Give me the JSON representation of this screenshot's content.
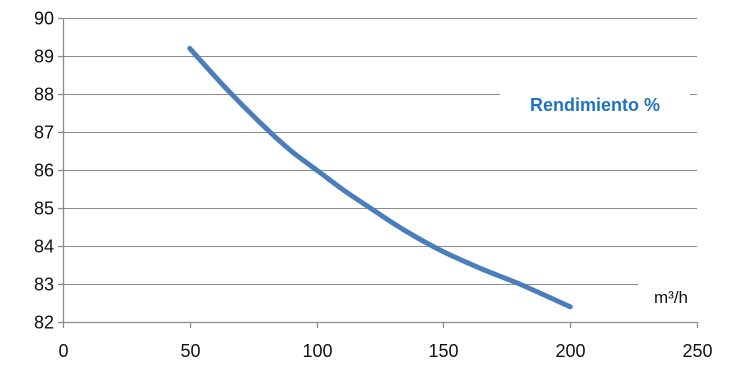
{
  "chart_data": {
    "type": "line",
    "x": [
      50,
      65,
      80,
      90,
      100,
      110,
      120,
      135,
      150,
      165,
      180,
      200
    ],
    "series": [
      {
        "name": "Rendimiento %",
        "values": [
          89.2,
          88.1,
          87.1,
          86.5,
          86.0,
          85.5,
          85.05,
          84.4,
          83.85,
          83.4,
          83.0,
          82.4
        ],
        "color": "#4a7ebb"
      }
    ],
    "xlim": [
      0,
      250
    ],
    "ylim": [
      82,
      90
    ],
    "xticks": [
      0,
      50,
      100,
      150,
      200,
      250
    ],
    "yticks": [
      82,
      83,
      84,
      85,
      86,
      87,
      88,
      89,
      90
    ],
    "xlabel": "m³/h",
    "ylabel": "",
    "title": "",
    "grid": true,
    "label_color": "#1f73c0"
  }
}
